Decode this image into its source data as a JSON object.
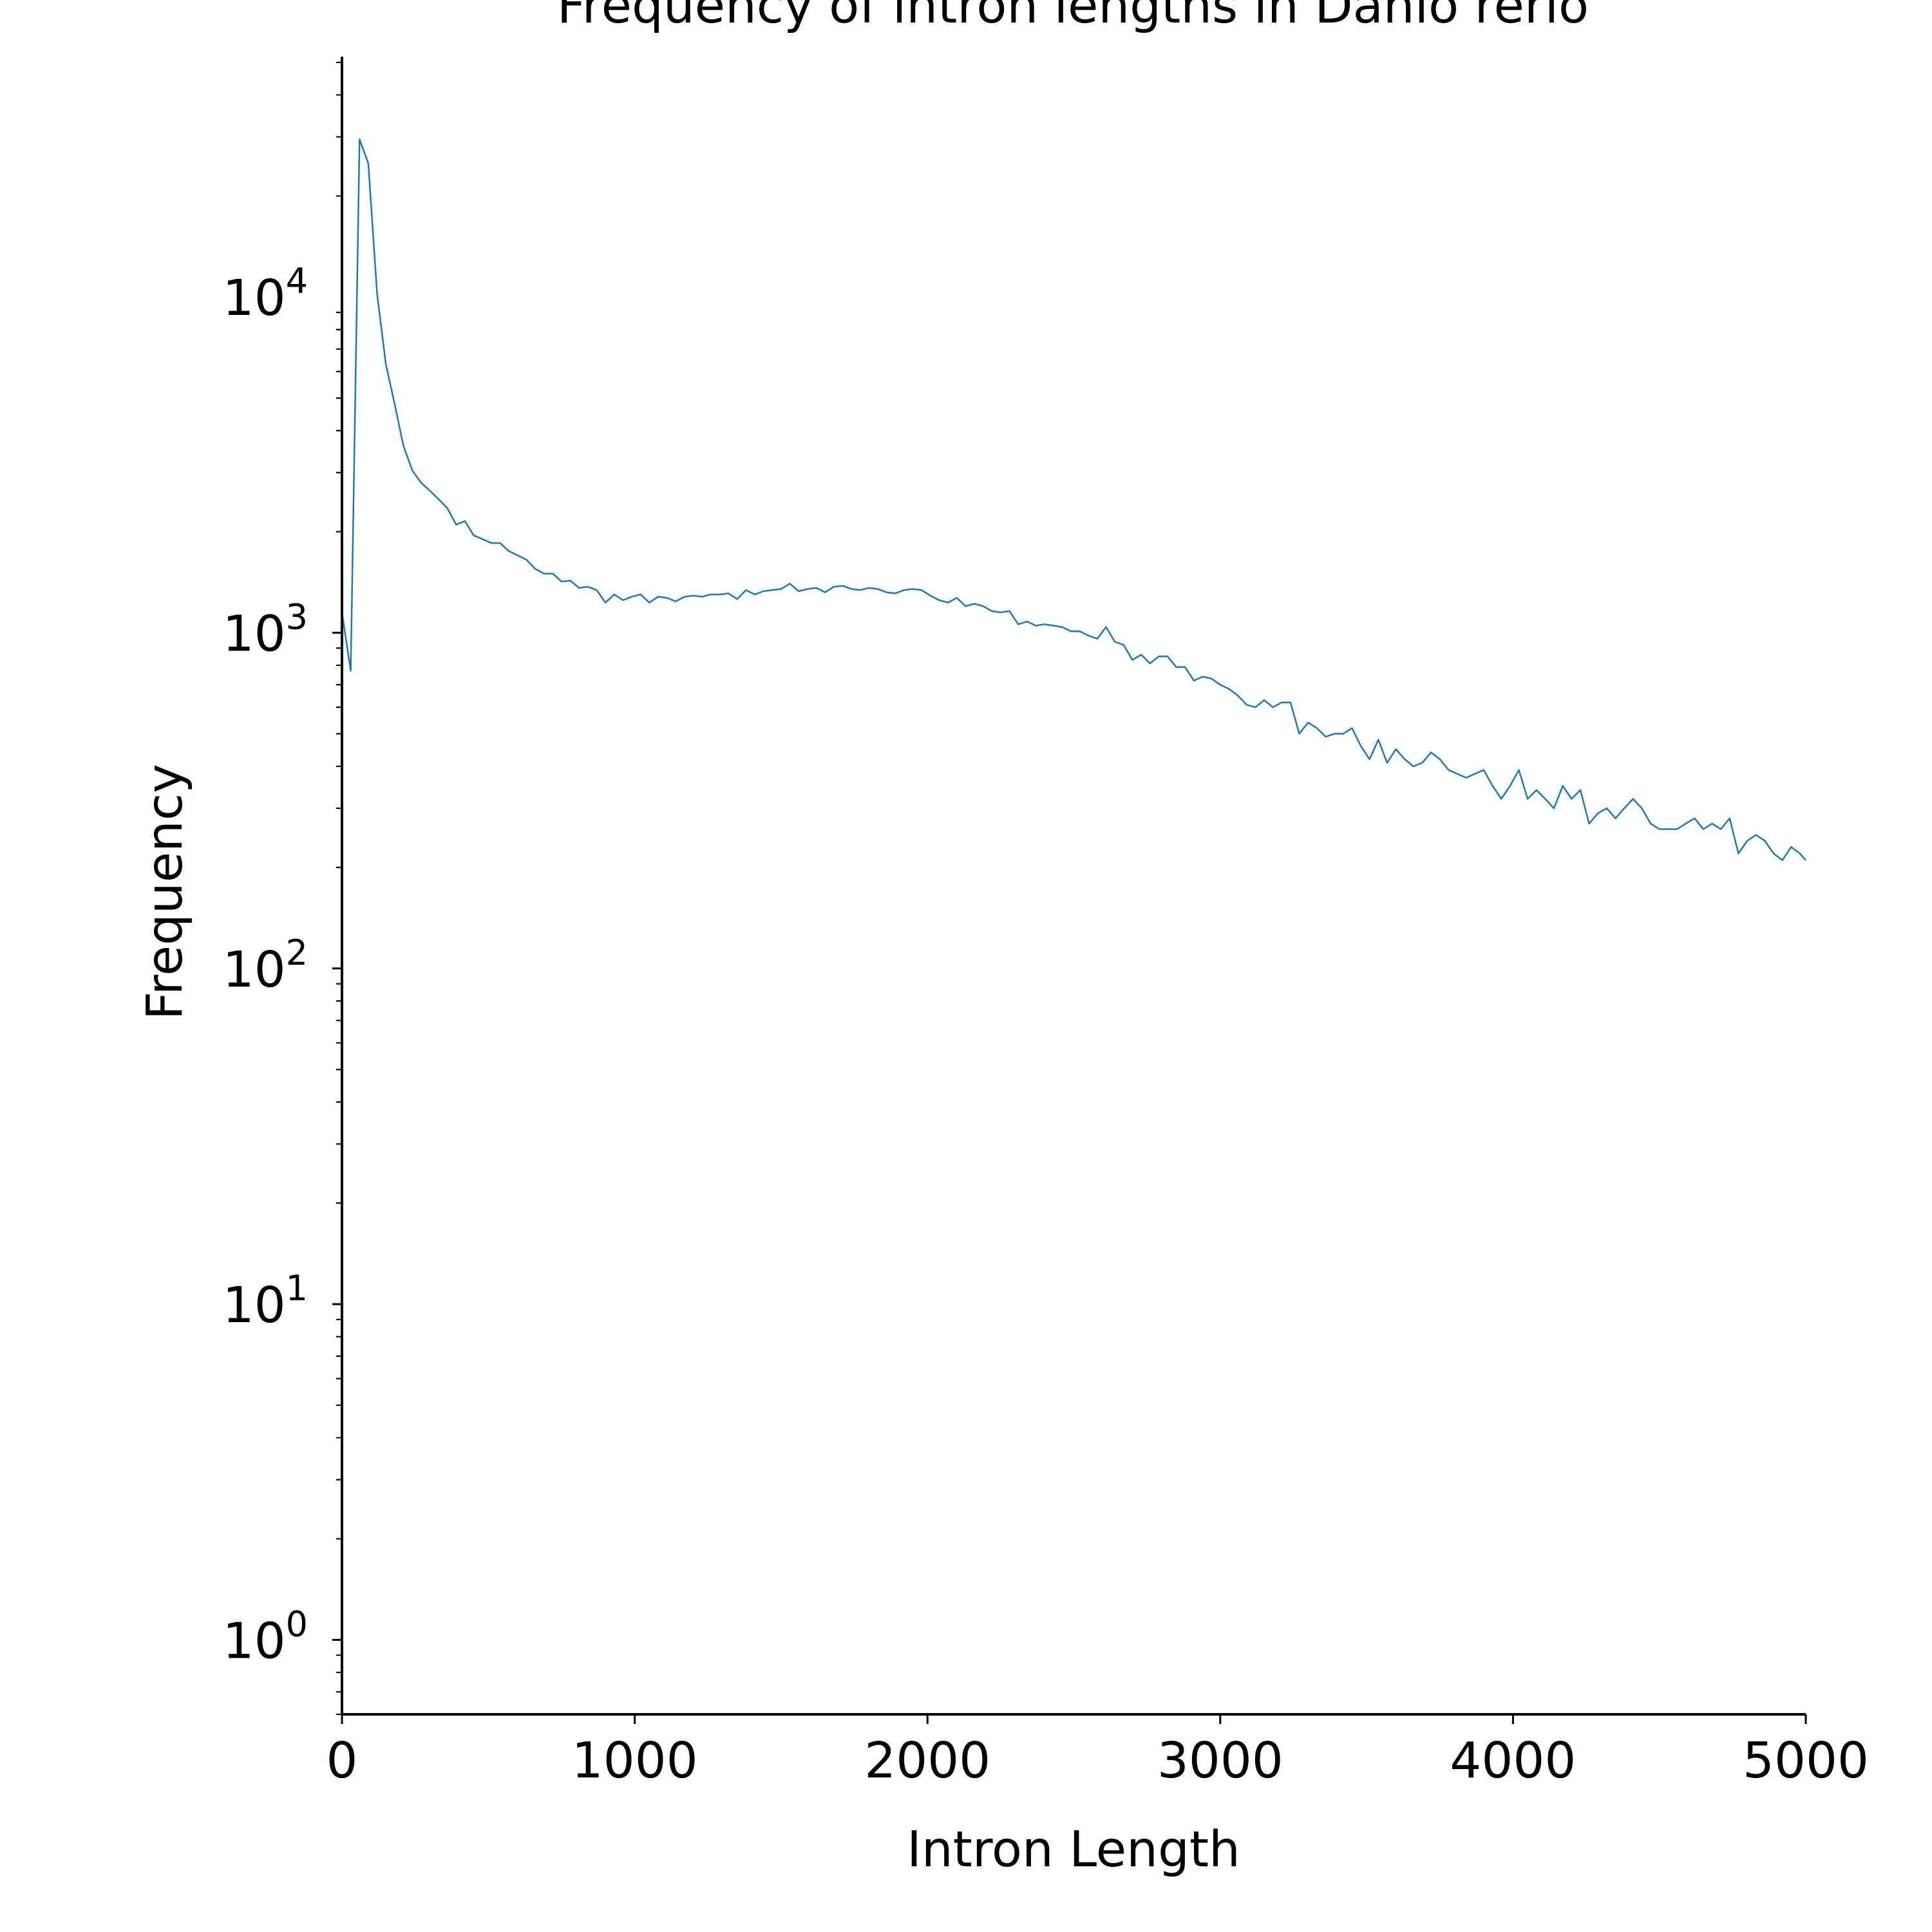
{
  "chart_data": {
    "type": "line",
    "title": "Frequency of intron lengths in Danio rerio",
    "xlabel": "Intron Length",
    "ylabel": "Frequency",
    "xlim": [
      0,
      5000
    ],
    "ylim": [
      0.6,
      52000
    ],
    "yscale": "log",
    "grid": false,
    "legend": "none",
    "x_ticks": [
      0,
      1000,
      2000,
      3000,
      4000,
      5000
    ],
    "x_tick_labels": [
      "0",
      "1000",
      "2000",
      "3000",
      "4000",
      "5000"
    ],
    "y_ticks": [
      {
        "value": 1,
        "base": "10",
        "exp": "0"
      },
      {
        "value": 10,
        "base": "10",
        "exp": "1"
      },
      {
        "value": 100,
        "base": "10",
        "exp": "2"
      },
      {
        "value": 1000,
        "base": "10",
        "exp": "3"
      },
      {
        "value": 10000,
        "base": "10",
        "exp": "4"
      }
    ],
    "series": [
      {
        "color": "#1f77b4",
        "x": [
          0,
          30,
          60,
          90,
          120,
          150,
          180,
          210,
          240,
          270,
          300,
          330,
          360,
          390,
          420,
          450,
          480,
          510,
          540,
          570,
          600,
          630,
          660,
          690,
          720,
          750,
          780,
          810,
          840,
          870,
          900,
          930,
          960,
          990,
          1020,
          1050,
          1080,
          1110,
          1140,
          1170,
          1200,
          1230,
          1260,
          1290,
          1320,
          1350,
          1380,
          1410,
          1440,
          1470,
          1500,
          1530,
          1560,
          1590,
          1620,
          1650,
          1680,
          1710,
          1740,
          1770,
          1800,
          1830,
          1860,
          1890,
          1920,
          1950,
          1980,
          2010,
          2040,
          2070,
          2100,
          2130,
          2160,
          2190,
          2220,
          2250,
          2280,
          2310,
          2340,
          2370,
          2400,
          2430,
          2460,
          2490,
          2520,
          2550,
          2580,
          2610,
          2640,
          2670,
          2700,
          2730,
          2760,
          2790,
          2820,
          2850,
          2880,
          2910,
          2940,
          2970,
          3000,
          3030,
          3060,
          3090,
          3120,
          3150,
          3180,
          3210,
          3240,
          3270,
          3300,
          3330,
          3360,
          3390,
          3420,
          3450,
          3480,
          3510,
          3540,
          3570,
          3600,
          3630,
          3660,
          3690,
          3720,
          3750,
          3780,
          3810,
          3840,
          3870,
          3900,
          3930,
          3960,
          3990,
          4020,
          4050,
          4080,
          4110,
          4140,
          4170,
          4200,
          4230,
          4260,
          4290,
          4320,
          4350,
          4380,
          4410,
          4440,
          4470,
          4500,
          4530,
          4560,
          4590,
          4620,
          4650,
          4680,
          4710,
          4740,
          4770,
          4800,
          4830,
          4860,
          4890,
          4920,
          4950,
          4980,
          5000
        ],
        "y": [
          1150,
          770,
          29500,
          25000,
          10200,
          6300,
          4800,
          3600,
          3050,
          2800,
          2650,
          2500,
          2350,
          2100,
          2150,
          1950,
          1900,
          1850,
          1850,
          1750,
          1700,
          1650,
          1550,
          1500,
          1500,
          1420,
          1430,
          1360,
          1370,
          1340,
          1230,
          1300,
          1250,
          1280,
          1300,
          1230,
          1280,
          1270,
          1240,
          1280,
          1290,
          1280,
          1300,
          1300,
          1310,
          1260,
          1340,
          1300,
          1330,
          1340,
          1350,
          1400,
          1330,
          1350,
          1360,
          1320,
          1370,
          1380,
          1350,
          1340,
          1360,
          1350,
          1320,
          1310,
          1340,
          1350,
          1340,
          1290,
          1250,
          1230,
          1270,
          1200,
          1220,
          1200,
          1160,
          1150,
          1160,
          1060,
          1080,
          1050,
          1060,
          1050,
          1040,
          1010,
          1010,
          980,
          960,
          1040,
          940,
          920,
          830,
          860,
          810,
          850,
          850,
          790,
          790,
          720,
          740,
          730,
          700,
          680,
          650,
          610,
          600,
          630,
          600,
          620,
          620,
          500,
          540,
          520,
          490,
          500,
          500,
          520,
          460,
          420,
          480,
          410,
          450,
          420,
          400,
          410,
          440,
          420,
          390,
          380,
          370,
          380,
          390,
          350,
          320,
          350,
          390,
          320,
          340,
          320,
          300,
          350,
          320,
          340,
          270,
          290,
          300,
          280,
          300,
          320,
          300,
          270,
          260,
          260,
          260,
          270,
          280,
          260,
          270,
          260,
          280,
          220,
          240,
          250,
          240,
          220,
          210,
          230,
          220,
          210
        ]
      }
    ]
  }
}
